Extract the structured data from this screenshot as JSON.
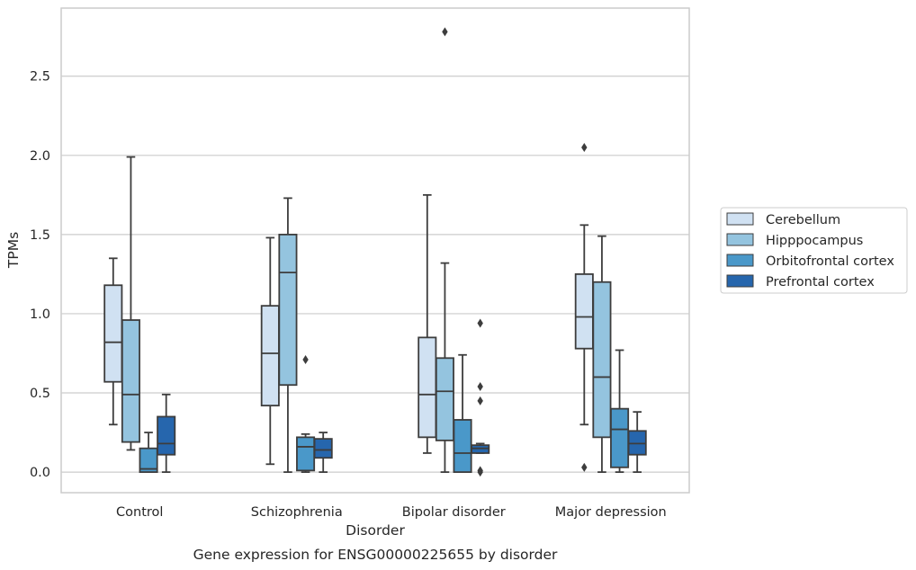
{
  "chart_data": {
    "type": "box",
    "xlabel": "Disorder",
    "ylabel": "TPMs",
    "caption": "Gene expression for ENSG00000225655 by disorder",
    "categories": [
      "Control",
      "Schizophrenia",
      "Bipolar disorder",
      "Major depression"
    ],
    "ylim": [
      -0.13,
      2.93
    ],
    "yticks": [
      "0.0",
      "0.5",
      "1.0",
      "1.5",
      "2.0",
      "2.5"
    ],
    "grid": "horizontal",
    "legend_position": "right",
    "series": [
      {
        "name": "Cerebellum",
        "color": "#d0e1f2",
        "boxes": [
          {
            "whislo": 0.3,
            "q1": 0.57,
            "med": 0.82,
            "q3": 1.18,
            "whishi": 1.35,
            "fliers": []
          },
          {
            "whislo": 0.05,
            "q1": 0.42,
            "med": 0.75,
            "q3": 1.05,
            "whishi": 1.48,
            "fliers": []
          },
          {
            "whislo": 0.12,
            "q1": 0.22,
            "med": 0.49,
            "q3": 0.85,
            "whishi": 1.75,
            "fliers": []
          },
          {
            "whislo": 0.3,
            "q1": 0.78,
            "med": 0.98,
            "q3": 1.25,
            "whishi": 1.56,
            "fliers": [
              0.03,
              2.05
            ]
          }
        ]
      },
      {
        "name": "Hipppocampus",
        "color": "#94c4df",
        "boxes": [
          {
            "whislo": 0.14,
            "q1": 0.19,
            "med": 0.49,
            "q3": 0.96,
            "whishi": 1.99,
            "fliers": []
          },
          {
            "whislo": 0.0,
            "q1": 0.55,
            "med": 1.26,
            "q3": 1.5,
            "whishi": 1.73,
            "fliers": []
          },
          {
            "whislo": 0.0,
            "q1": 0.2,
            "med": 0.51,
            "q3": 0.72,
            "whishi": 1.32,
            "fliers": [
              2.78
            ]
          },
          {
            "whislo": 0.0,
            "q1": 0.22,
            "med": 0.6,
            "q3": 1.2,
            "whishi": 1.49,
            "fliers": []
          }
        ]
      },
      {
        "name": "Orbitofrontal cortex",
        "color": "#4a98c9",
        "boxes": [
          {
            "whislo": 0.0,
            "q1": 0.0,
            "med": 0.02,
            "q3": 0.15,
            "whishi": 0.25,
            "fliers": []
          },
          {
            "whislo": 0.0,
            "q1": 0.01,
            "med": 0.16,
            "q3": 0.22,
            "whishi": 0.24,
            "fliers": [
              0.71
            ]
          },
          {
            "whislo": 0.0,
            "q1": 0.0,
            "med": 0.12,
            "q3": 0.33,
            "whishi": 0.74,
            "fliers": []
          },
          {
            "whislo": 0.0,
            "q1": 0.03,
            "med": 0.27,
            "q3": 0.4,
            "whishi": 0.77,
            "fliers": []
          }
        ]
      },
      {
        "name": "Prefrontal cortex",
        "color": "#2666ad",
        "boxes": [
          {
            "whislo": 0.0,
            "q1": 0.11,
            "med": 0.18,
            "q3": 0.35,
            "whishi": 0.49,
            "fliers": []
          },
          {
            "whislo": 0.0,
            "q1": 0.09,
            "med": 0.14,
            "q3": 0.21,
            "whishi": 0.25,
            "fliers": []
          },
          {
            "whislo": 0.12,
            "q1": 0.12,
            "med": 0.15,
            "q3": 0.17,
            "whishi": 0.18,
            "fliers": [
              0.0,
              0.01,
              0.45,
              0.54,
              0.94
            ]
          },
          {
            "whislo": 0.0,
            "q1": 0.11,
            "med": 0.18,
            "q3": 0.26,
            "whishi": 0.38,
            "fliers": []
          }
        ]
      }
    ]
  }
}
